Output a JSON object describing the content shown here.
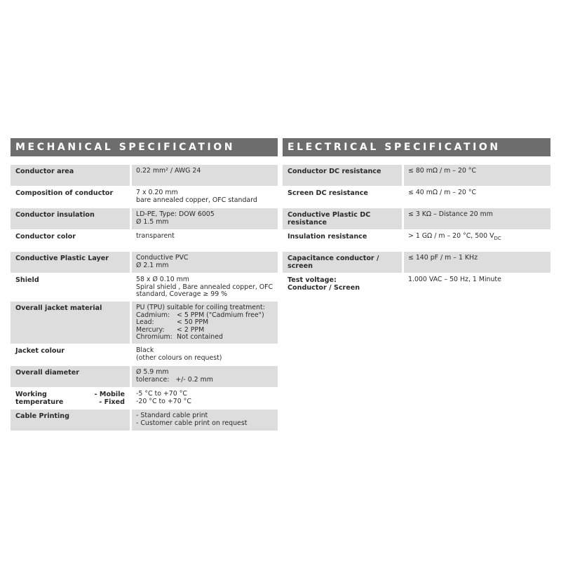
{
  "mechanical": {
    "title": "MECHANICAL SPECIFICATION",
    "rows": [
      {
        "label": "Conductor area",
        "lines": [
          "0.22 mm² / AWG 24"
        ]
      },
      {
        "label": "Composition of conductor",
        "lines": [
          "7 x 0.20 mm",
          "bare annealed copper, OFC standard"
        ]
      },
      {
        "label": "Conductor insulation",
        "lines": [
          "LD-PE, Type: DOW 6005",
          "Ø 1.5 mm"
        ]
      },
      {
        "label": "Conductor color",
        "lines": [
          "transparent"
        ]
      },
      {
        "label": "Conductive Plastic Layer",
        "lines": [
          "Conductive PVC",
          "Ø 2.1 mm"
        ]
      },
      {
        "label": "Shield",
        "lines": [
          "58 x Ø 0.10 mm",
          "Spiral shield , Bare annealed copper, OFC",
          "standard, Coverage ≥ 99 %"
        ]
      },
      {
        "label": "Overall jacket material",
        "lines": [
          "PU (TPU) suitable for coiling treatment:"
        ],
        "pairs": [
          {
            "k": "Cadmium:",
            "v": "< 5 PPM (\"Cadmium free\")"
          },
          {
            "k": "Lead:",
            "v": "< 50 PPM"
          },
          {
            "k": "Mercury:",
            "v": "< 2 PPM"
          },
          {
            "k": "Chromium:",
            "v": "Not contained"
          }
        ]
      },
      {
        "label": "Jacket colour",
        "lines": [
          "Black",
          "(other colours on request)"
        ]
      },
      {
        "label": "Overall diameter",
        "lines": [
          "Ø 5.9 mm",
          "tolerance:   +/- 0.2 mm"
        ]
      },
      {
        "label": "Working temperature",
        "sublabels": [
          "- Mobile",
          "- Fixed"
        ],
        "lines": [
          "-5 °C to +70 °C",
          "-20 °C to +70 °C"
        ]
      },
      {
        "label": "Cable Printing",
        "lines": [
          "- Standard cable print",
          "- Customer cable print on request"
        ]
      }
    ]
  },
  "electrical": {
    "title": "ELECTRICAL SPECIFICATION",
    "rows": [
      {
        "label": "Conductor DC resistance",
        "value": "≤ 80 mΩ / m – 20 °C"
      },
      {
        "label": "Screen DC resistance",
        "value": "≤ 40 mΩ / m – 20 °C"
      },
      {
        "label": "Conductive Plastic DC resistance",
        "value": "≤ 3 KΩ – Distance 20 mm"
      },
      {
        "label": "Insulation resistance",
        "value": "> 1 GΩ / m – 20 °C, 500 V",
        "value_sub": "DC"
      },
      {
        "label": "Capacitance conductor / screen",
        "value": "≤ 140 pF / m – 1 KHz"
      },
      {
        "label": "Test voltage:",
        "label2": "Conductor / Screen",
        "value": "1.000 VAC – 50 Hz, 1 Minute"
      }
    ]
  },
  "colors": {
    "header_bg": "#6d6d6d",
    "row_shade": "#dddddd",
    "text": "#2a2a2a"
  }
}
